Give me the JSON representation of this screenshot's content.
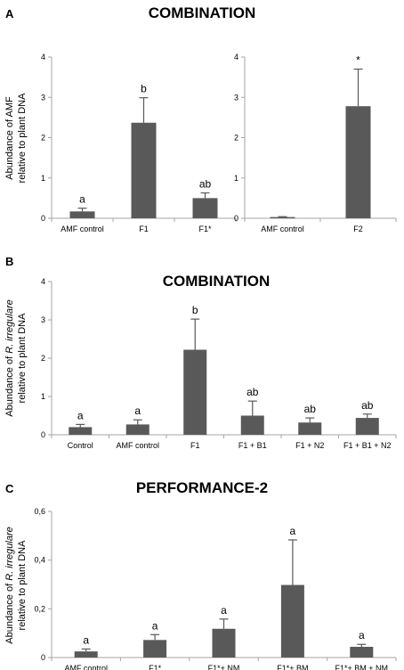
{
  "colors": {
    "bar": "#595959",
    "axis": "#a6a6a6",
    "text": "#000000"
  },
  "chart_data": [
    {
      "id": "A1",
      "type": "bar",
      "panel_letter": "A",
      "title": "COMBINATION",
      "ylabel": [
        "Abundance of AMF",
        "relative to plant DNA"
      ],
      "ylabel_italic": "",
      "ylim": [
        0,
        4
      ],
      "yticks": [
        "0",
        "1",
        "2",
        "3",
        "4"
      ],
      "yticks_values": [
        0,
        1,
        2,
        3,
        4
      ],
      "categories": [
        "AMF control",
        "F1",
        "F1*"
      ],
      "values": [
        0.17,
        2.37,
        0.5
      ],
      "errors": [
        0.08,
        0.62,
        0.13
      ],
      "letters": [
        "a",
        "b",
        "ab"
      ]
    },
    {
      "id": "A2",
      "type": "bar",
      "ylim": [
        0,
        4
      ],
      "yticks": [
        "0",
        "1",
        "2",
        "3",
        "4"
      ],
      "yticks_values": [
        0,
        1,
        2,
        3,
        4
      ],
      "categories": [
        "AMF control",
        "F2"
      ],
      "values": [
        0.03,
        2.78
      ],
      "errors": [
        0.01,
        0.92
      ],
      "letters": [
        "",
        "*"
      ]
    },
    {
      "id": "B",
      "type": "bar",
      "panel_letter": "B",
      "title": "COMBINATION",
      "ylabel": [
        "Abundance of ",
        "relative to plant DNA"
      ],
      "ylabel_italic": "R. irregulare",
      "ylim": [
        0,
        4
      ],
      "yticks": [
        "0",
        "1",
        "2",
        "3",
        "4"
      ],
      "yticks_values": [
        0,
        1,
        2,
        3,
        4
      ],
      "categories": [
        "Control",
        "AMF control",
        "F1",
        "F1 + B1",
        "F1  + N2",
        "F1 + B1 + N2"
      ],
      "values": [
        0.2,
        0.27,
        2.22,
        0.5,
        0.32,
        0.44
      ],
      "errors": [
        0.07,
        0.12,
        0.8,
        0.38,
        0.12,
        0.1
      ],
      "letters": [
        "a",
        "a",
        "b",
        "ab",
        "ab",
        "ab"
      ]
    },
    {
      "id": "C",
      "type": "bar",
      "panel_letter": "C",
      "title": "PERFORMANCE-2",
      "ylabel": [
        "Abundance of ",
        "relative to plant DNA"
      ],
      "ylabel_italic": "R. irregulare",
      "ylim": [
        0,
        0.6
      ],
      "yticks": [
        "0",
        "0,2",
        "0,4",
        "0,6"
      ],
      "yticks_values": [
        0,
        0.2,
        0.4,
        0.6
      ],
      "categories": [
        "AMF control",
        "F1*",
        "F1*+ NM",
        "F1*+ BM",
        "F1*+ BM + NM"
      ],
      "values": [
        0.025,
        0.072,
        0.118,
        0.298,
        0.044
      ],
      "errors": [
        0.01,
        0.022,
        0.04,
        0.185,
        0.01
      ],
      "letters": [
        "a",
        "a",
        "a",
        "a",
        "a"
      ]
    }
  ]
}
